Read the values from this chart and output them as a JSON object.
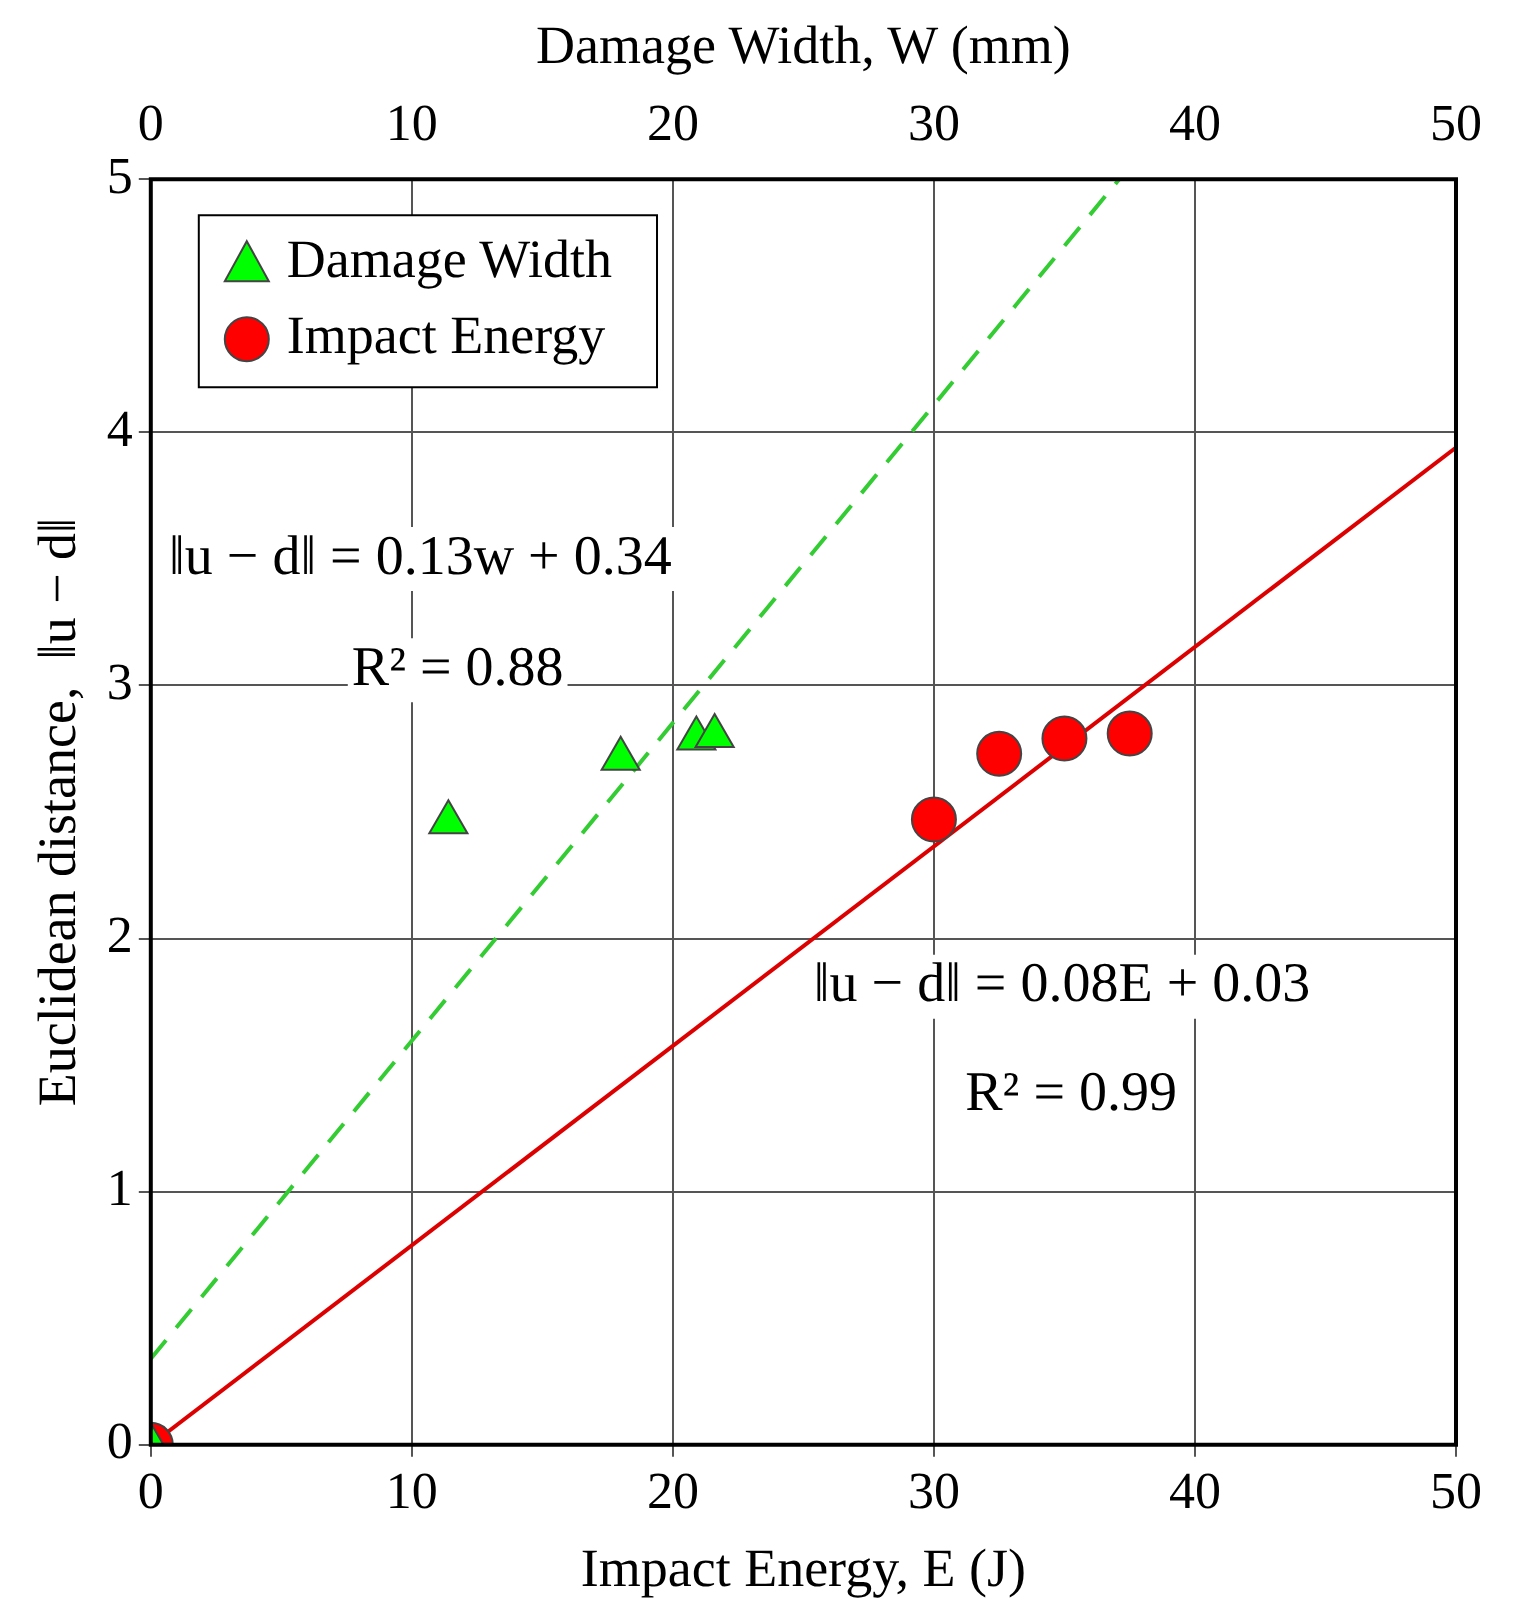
{
  "chart_data": {
    "type": "scatter",
    "xlabel": "Impact Energy, E (J)",
    "x2label": "Damage Width, W (mm)",
    "ylabel": "Euclidean distance,  ‖u − d‖",
    "xlim": [
      0,
      50
    ],
    "xticks": [
      0,
      10,
      20,
      30,
      40,
      50
    ],
    "x2lim": [
      0,
      50
    ],
    "x2ticks": [
      0,
      10,
      20,
      30,
      40,
      50
    ],
    "ylim": [
      0,
      5
    ],
    "yticks": [
      0,
      1,
      2,
      3,
      4,
      5
    ],
    "grid": true,
    "legend": "top left",
    "series": [
      {
        "name": "Damage Width",
        "color": "#00ff00",
        "marker": "triangle",
        "x": [
          0,
          11.4,
          18.0,
          20.9,
          21.6
        ],
        "values": [
          0,
          2.46,
          2.71,
          2.79,
          2.8
        ]
      },
      {
        "name": "Impact Energy",
        "color": "#ff0000",
        "marker": "circle",
        "x": [
          0,
          30.0,
          32.5,
          35.0,
          37.5
        ],
        "values": [
          0,
          2.47,
          2.73,
          2.79,
          2.81
        ]
      },
      {
        "type": "line",
        "color": "#33cc33",
        "line_style": "dashed",
        "marker": "none",
        "x": [
          0,
          37.1
        ],
        "values": [
          0.34,
          5
        ]
      },
      {
        "type": "line",
        "color": "#dd0000",
        "line_style": "solid",
        "marker": "none",
        "x": [
          0,
          50
        ],
        "values": [
          0,
          3.94
        ]
      }
    ],
    "annotations": [
      "‖u − d‖ = 0.13w + 0.34",
      "R² = 0.88",
      "‖u − d‖ = 0.08E + 0.03",
      "R² = 0.99"
    ]
  }
}
